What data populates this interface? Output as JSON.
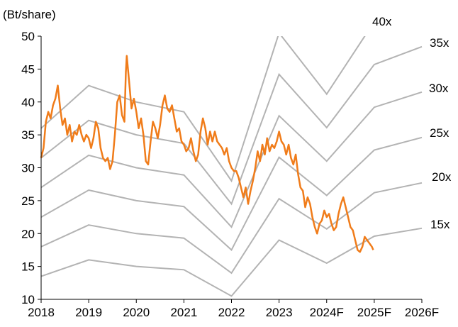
{
  "chart_data": {
    "type": "line",
    "ylabel": "(Bt/share)",
    "ylim": [
      10,
      50
    ],
    "yticks": [
      10,
      15,
      20,
      25,
      30,
      35,
      40,
      45,
      50
    ],
    "xlim": [
      2018,
      2026
    ],
    "xticks": [
      "2018",
      "2019",
      "2020",
      "2021",
      "2022",
      "2023",
      "2024F",
      "2025F",
      "2026F"
    ],
    "grid": false,
    "legend": "none",
    "band_color": "#b3b3b3",
    "price_color": "#f07c1a",
    "bands": [
      {
        "name": "15x",
        "points": [
          [
            2018,
            13.5
          ],
          [
            2019,
            16.0
          ],
          [
            2020,
            15.0
          ],
          [
            2021,
            14.5
          ],
          [
            2022,
            10.5
          ],
          [
            2023,
            19.0
          ],
          [
            2024,
            15.5
          ],
          [
            2025,
            19.6
          ],
          [
            2026,
            20.8
          ]
        ]
      },
      {
        "name": "20x",
        "points": [
          [
            2018,
            18.0
          ],
          [
            2019,
            21.3
          ],
          [
            2020,
            20.0
          ],
          [
            2021,
            19.3
          ],
          [
            2022,
            14.0
          ],
          [
            2023,
            25.3
          ],
          [
            2024,
            20.7
          ],
          [
            2025,
            26.2
          ],
          [
            2026,
            27.7
          ]
        ]
      },
      {
        "name": "25x",
        "points": [
          [
            2018,
            22.5
          ],
          [
            2019,
            26.6
          ],
          [
            2020,
            25.0
          ],
          [
            2021,
            24.1
          ],
          [
            2022,
            17.5
          ],
          [
            2023,
            31.6
          ],
          [
            2024,
            25.8
          ],
          [
            2025,
            32.7
          ],
          [
            2026,
            34.6
          ]
        ]
      },
      {
        "name": "30x",
        "points": [
          [
            2018,
            27.0
          ],
          [
            2019,
            31.9
          ],
          [
            2020,
            30.0
          ],
          [
            2021,
            28.9
          ],
          [
            2022,
            21.0
          ],
          [
            2023,
            37.9
          ],
          [
            2024,
            31.0
          ],
          [
            2025,
            39.2
          ],
          [
            2026,
            41.5
          ]
        ]
      },
      {
        "name": "35x",
        "points": [
          [
            2018,
            31.5
          ],
          [
            2019,
            37.2
          ],
          [
            2020,
            35.0
          ],
          [
            2021,
            33.7
          ],
          [
            2022,
            24.5
          ],
          [
            2023,
            44.2
          ],
          [
            2024,
            36.1
          ],
          [
            2025,
            45.7
          ],
          [
            2026,
            48.4
          ]
        ]
      },
      {
        "name": "40x",
        "points": [
          [
            2018,
            36.0
          ],
          [
            2019,
            42.5
          ],
          [
            2020,
            40.0
          ],
          [
            2021,
            38.5
          ],
          [
            2022,
            28.0
          ],
          [
            2023,
            50.5
          ],
          [
            2024,
            41.2
          ],
          [
            2025,
            52.2
          ],
          [
            2026,
            55.3
          ]
        ]
      }
    ],
    "series": [
      {
        "name": "",
        "points": [
          [
            2018.0,
            31.5
          ],
          [
            2018.05,
            33.0
          ],
          [
            2018.1,
            37.0
          ],
          [
            2018.15,
            38.5
          ],
          [
            2018.2,
            37.5
          ],
          [
            2018.25,
            39.5
          ],
          [
            2018.3,
            40.5
          ],
          [
            2018.35,
            42.5
          ],
          [
            2018.4,
            39.0
          ],
          [
            2018.45,
            36.5
          ],
          [
            2018.5,
            37.5
          ],
          [
            2018.55,
            35.0
          ],
          [
            2018.6,
            36.5
          ],
          [
            2018.65,
            34.0
          ],
          [
            2018.7,
            35.5
          ],
          [
            2018.75,
            35.0
          ],
          [
            2018.8,
            36.5
          ],
          [
            2018.85,
            35.0
          ],
          [
            2018.9,
            34.0
          ],
          [
            2018.95,
            35.0
          ],
          [
            2019.0,
            34.5
          ],
          [
            2019.05,
            33.0
          ],
          [
            2019.1,
            34.5
          ],
          [
            2019.15,
            37.0
          ],
          [
            2019.2,
            36.0
          ],
          [
            2019.25,
            33.0
          ],
          [
            2019.3,
            31.5
          ],
          [
            2019.35,
            31.0
          ],
          [
            2019.4,
            31.5
          ],
          [
            2019.45,
            29.8
          ],
          [
            2019.5,
            31.0
          ],
          [
            2019.55,
            35.0
          ],
          [
            2019.6,
            40.0
          ],
          [
            2019.65,
            41.0
          ],
          [
            2019.7,
            38.0
          ],
          [
            2019.75,
            37.0
          ],
          [
            2019.78,
            44.5
          ],
          [
            2019.8,
            47.0
          ],
          [
            2019.85,
            43.0
          ],
          [
            2019.9,
            39.0
          ],
          [
            2019.95,
            40.5
          ],
          [
            2020.0,
            38.5
          ],
          [
            2020.05,
            36.0
          ],
          [
            2020.1,
            37.5
          ],
          [
            2020.15,
            35.0
          ],
          [
            2020.2,
            31.0
          ],
          [
            2020.25,
            30.5
          ],
          [
            2020.3,
            34.0
          ],
          [
            2020.35,
            37.0
          ],
          [
            2020.4,
            36.0
          ],
          [
            2020.45,
            34.5
          ],
          [
            2020.5,
            36.5
          ],
          [
            2020.55,
            39.5
          ],
          [
            2020.6,
            41.0
          ],
          [
            2020.65,
            39.0
          ],
          [
            2020.7,
            38.5
          ],
          [
            2020.75,
            39.5
          ],
          [
            2020.8,
            37.5
          ],
          [
            2020.85,
            35.5
          ],
          [
            2020.9,
            36.0
          ],
          [
            2020.95,
            34.0
          ],
          [
            2021.0,
            33.5
          ],
          [
            2021.05,
            32.5
          ],
          [
            2021.1,
            33.0
          ],
          [
            2021.15,
            34.5
          ],
          [
            2021.2,
            32.5
          ],
          [
            2021.25,
            31.0
          ],
          [
            2021.3,
            32.0
          ],
          [
            2021.35,
            35.5
          ],
          [
            2021.4,
            37.5
          ],
          [
            2021.45,
            36.0
          ],
          [
            2021.5,
            33.5
          ],
          [
            2021.55,
            35.5
          ],
          [
            2021.6,
            34.0
          ],
          [
            2021.65,
            35.5
          ],
          [
            2021.7,
            34.0
          ],
          [
            2021.75,
            33.5
          ],
          [
            2021.8,
            33.0
          ],
          [
            2021.85,
            32.0
          ],
          [
            2021.9,
            33.0
          ],
          [
            2021.95,
            31.0
          ],
          [
            2022.0,
            30.0
          ],
          [
            2022.05,
            29.5
          ],
          [
            2022.1,
            29.5
          ],
          [
            2022.15,
            28.5
          ],
          [
            2022.2,
            27.0
          ],
          [
            2022.25,
            25.5
          ],
          [
            2022.3,
            27.0
          ],
          [
            2022.35,
            24.5
          ],
          [
            2022.4,
            26.5
          ],
          [
            2022.45,
            28.0
          ],
          [
            2022.5,
            30.0
          ],
          [
            2022.55,
            32.5
          ],
          [
            2022.6,
            31.0
          ],
          [
            2022.65,
            33.5
          ],
          [
            2022.7,
            32.0
          ],
          [
            2022.75,
            34.5
          ],
          [
            2022.8,
            32.5
          ],
          [
            2022.85,
            33.5
          ],
          [
            2022.9,
            33.0
          ],
          [
            2022.95,
            34.0
          ],
          [
            2023.0,
            35.5
          ],
          [
            2023.05,
            34.0
          ],
          [
            2023.1,
            33.5
          ],
          [
            2023.15,
            32.0
          ],
          [
            2023.2,
            33.5
          ],
          [
            2023.25,
            31.5
          ],
          [
            2023.3,
            30.5
          ],
          [
            2023.35,
            32.0
          ],
          [
            2023.4,
            29.0
          ],
          [
            2023.45,
            27.0
          ],
          [
            2023.5,
            26.5
          ],
          [
            2023.55,
            24.0
          ],
          [
            2023.6,
            25.5
          ],
          [
            2023.65,
            24.5
          ],
          [
            2023.7,
            22.5
          ],
          [
            2023.75,
            21.0
          ],
          [
            2023.8,
            20.0
          ],
          [
            2023.85,
            21.5
          ],
          [
            2023.9,
            22.0
          ],
          [
            2023.95,
            23.5
          ],
          [
            2024.0,
            22.5
          ],
          [
            2024.05,
            23.0
          ],
          [
            2024.1,
            21.5
          ],
          [
            2024.15,
            20.5
          ],
          [
            2024.2,
            21.0
          ],
          [
            2024.25,
            23.0
          ],
          [
            2024.3,
            24.5
          ],
          [
            2024.35,
            25.5
          ],
          [
            2024.4,
            24.0
          ],
          [
            2024.45,
            22.5
          ],
          [
            2024.5,
            21.0
          ],
          [
            2024.55,
            20.5
          ],
          [
            2024.6,
            19.0
          ],
          [
            2024.65,
            17.5
          ],
          [
            2024.7,
            17.2
          ],
          [
            2024.75,
            18.0
          ],
          [
            2024.8,
            19.5
          ],
          [
            2024.85,
            19.0
          ],
          [
            2024.9,
            18.5
          ],
          [
            2024.95,
            18.0
          ],
          [
            2024.98,
            17.5
          ]
        ]
      }
    ]
  }
}
